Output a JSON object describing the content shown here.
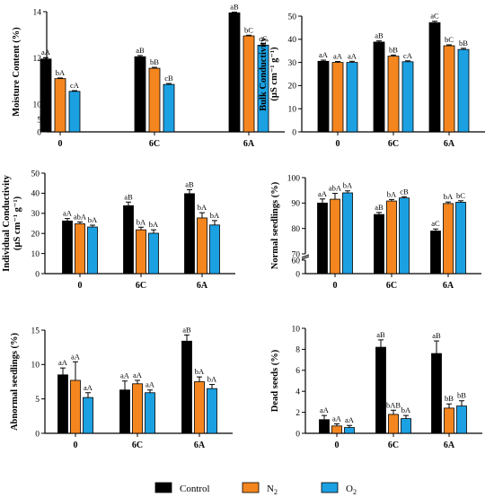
{
  "colors": {
    "Control": "#000000",
    "N2": "#f5861f",
    "O2": "#1ba1e2"
  },
  "legend": [
    {
      "name": "Control",
      "label": "Control",
      "sub": ""
    },
    {
      "name": "N2",
      "label": "N",
      "sub": "2"
    },
    {
      "name": "O2",
      "label": "O",
      "sub": "2"
    }
  ],
  "chart_data": [
    {
      "type": "bar",
      "ylabel": "Moisture Content (%)",
      "categories": [
        "0",
        "6C",
        "6A"
      ],
      "yticks": [
        0,
        5,
        10,
        12,
        14
      ],
      "ybreak": [
        5,
        10
      ],
      "series": [
        {
          "name": "Control",
          "values": [
            11.95,
            12.05,
            13.95
          ],
          "err": [
            0.06,
            0.05,
            0.03
          ],
          "labels": [
            "aA",
            "aB",
            "aB"
          ]
        },
        {
          "name": "N2",
          "values": [
            11.1,
            11.55,
            12.95
          ],
          "err": [
            0.03,
            0.04,
            0.03
          ],
          "labels": [
            "bA",
            "bB",
            "bC"
          ]
        },
        {
          "name": "O2",
          "values": [
            10.55,
            10.85,
            12.55
          ],
          "err": [
            0.03,
            0.04,
            0.05
          ],
          "labels": [
            "cA",
            "cB",
            "cC"
          ]
        }
      ]
    },
    {
      "type": "bar",
      "ylabel": "Bulk Conductivity",
      "ylabel2": "(µS cm⁻¹ g⁻¹)",
      "categories": [
        "0",
        "6C",
        "6A"
      ],
      "yticks": [
        0,
        10,
        20,
        30,
        40,
        50
      ],
      "series": [
        {
          "name": "Control",
          "values": [
            30.5,
            38.8,
            47.2
          ],
          "err": [
            0.5,
            0.5,
            0.6
          ],
          "labels": [
            "aA",
            "aB",
            "aC"
          ]
        },
        {
          "name": "N2",
          "values": [
            30.0,
            32.7,
            37.2
          ],
          "err": [
            0.4,
            0.5,
            0.4
          ],
          "labels": [
            "aA",
            "bB",
            "bC"
          ]
        },
        {
          "name": "O2",
          "values": [
            30.0,
            30.3,
            35.6
          ],
          "err": [
            0.5,
            0.4,
            0.5
          ],
          "labels": [
            "aA",
            "cA",
            "bB"
          ]
        }
      ]
    },
    {
      "type": "bar",
      "ylabel": "Individual Conductivity",
      "ylabel2": "(µS cm⁻¹ g⁻¹)",
      "categories": [
        "0",
        "6C",
        "6A"
      ],
      "yticks": [
        0,
        10,
        20,
        30,
        40,
        50
      ],
      "series": [
        {
          "name": "Control",
          "values": [
            26.2,
            33.8,
            39.8
          ],
          "err": [
            1.2,
            1.8,
            2.0
          ],
          "labels": [
            "aA",
            "aB",
            "aB"
          ]
        },
        {
          "name": "N2",
          "values": [
            24.8,
            21.8,
            27.7
          ],
          "err": [
            0.9,
            1.3,
            2.6
          ],
          "labels": [
            "abA",
            "bA",
            "bA"
          ]
        },
        {
          "name": "O2",
          "values": [
            23.2,
            20.1,
            24.2
          ],
          "err": [
            0.9,
            1.7,
            2.2
          ],
          "labels": [
            "bA",
            "bA",
            "bA"
          ]
        }
      ]
    },
    {
      "type": "bar",
      "ylabel": "Normal seedlings (%)",
      "categories": [
        "0",
        "6C",
        "6A"
      ],
      "yticks": [
        0,
        60,
        70,
        80,
        90,
        100
      ],
      "ybreak": [
        60,
        70
      ],
      "series": [
        {
          "name": "Control",
          "values": [
            90.0,
            85.5,
            79.0
          ],
          "err": [
            1.6,
            0.8,
            0.8
          ],
          "labels": [
            "aA",
            "aB",
            "aC"
          ]
        },
        {
          "name": "N2",
          "values": [
            91.5,
            90.8,
            89.8
          ],
          "err": [
            2.3,
            0.6,
            0.6
          ],
          "labels": [
            "abA",
            "bA",
            "bA"
          ]
        },
        {
          "name": "O2",
          "values": [
            94.0,
            92.0,
            90.3
          ],
          "err": [
            0.8,
            0.5,
            0.6
          ],
          "labels": [
            "bA",
            "cB",
            "bC"
          ]
        }
      ]
    },
    {
      "type": "bar",
      "ylabel": "Abnormal seedlings (%)",
      "categories": [
        "0",
        "6C",
        "6A"
      ],
      "yticks": [
        0,
        5,
        10,
        15
      ],
      "series": [
        {
          "name": "Control",
          "values": [
            8.5,
            6.3,
            13.4
          ],
          "err": [
            1.0,
            1.3,
            0.9
          ],
          "labels": [
            "aA",
            "aA",
            "aB"
          ]
        },
        {
          "name": "N2",
          "values": [
            7.7,
            7.2,
            7.5
          ],
          "err": [
            2.7,
            0.5,
            0.7
          ],
          "labels": [
            "aA",
            "aA",
            "bA"
          ]
        },
        {
          "name": "O2",
          "values": [
            5.2,
            5.9,
            6.5
          ],
          "err": [
            0.7,
            0.4,
            0.6
          ],
          "labels": [
            "aA",
            "aA",
            "bA"
          ]
        }
      ]
    },
    {
      "type": "bar",
      "ylabel": "Dead seeds (%)",
      "categories": [
        "0",
        "6C",
        "6A"
      ],
      "yticks": [
        0,
        2,
        4,
        6,
        8,
        10
      ],
      "series": [
        {
          "name": "Control",
          "values": [
            1.3,
            8.2,
            7.6
          ],
          "err": [
            0.4,
            0.7,
            1.2
          ],
          "labels": [
            "aA",
            "aB",
            "aB"
          ]
        },
        {
          "name": "N2",
          "values": [
            0.7,
            1.8,
            2.4
          ],
          "err": [
            0.2,
            0.4,
            0.4
          ],
          "labels": [
            "aA",
            "bAB",
            "bB"
          ]
        },
        {
          "name": "O2",
          "values": [
            0.55,
            1.4,
            2.6
          ],
          "err": [
            0.2,
            0.3,
            0.5
          ],
          "labels": [
            "aA",
            "bA",
            "bB"
          ]
        }
      ]
    }
  ]
}
